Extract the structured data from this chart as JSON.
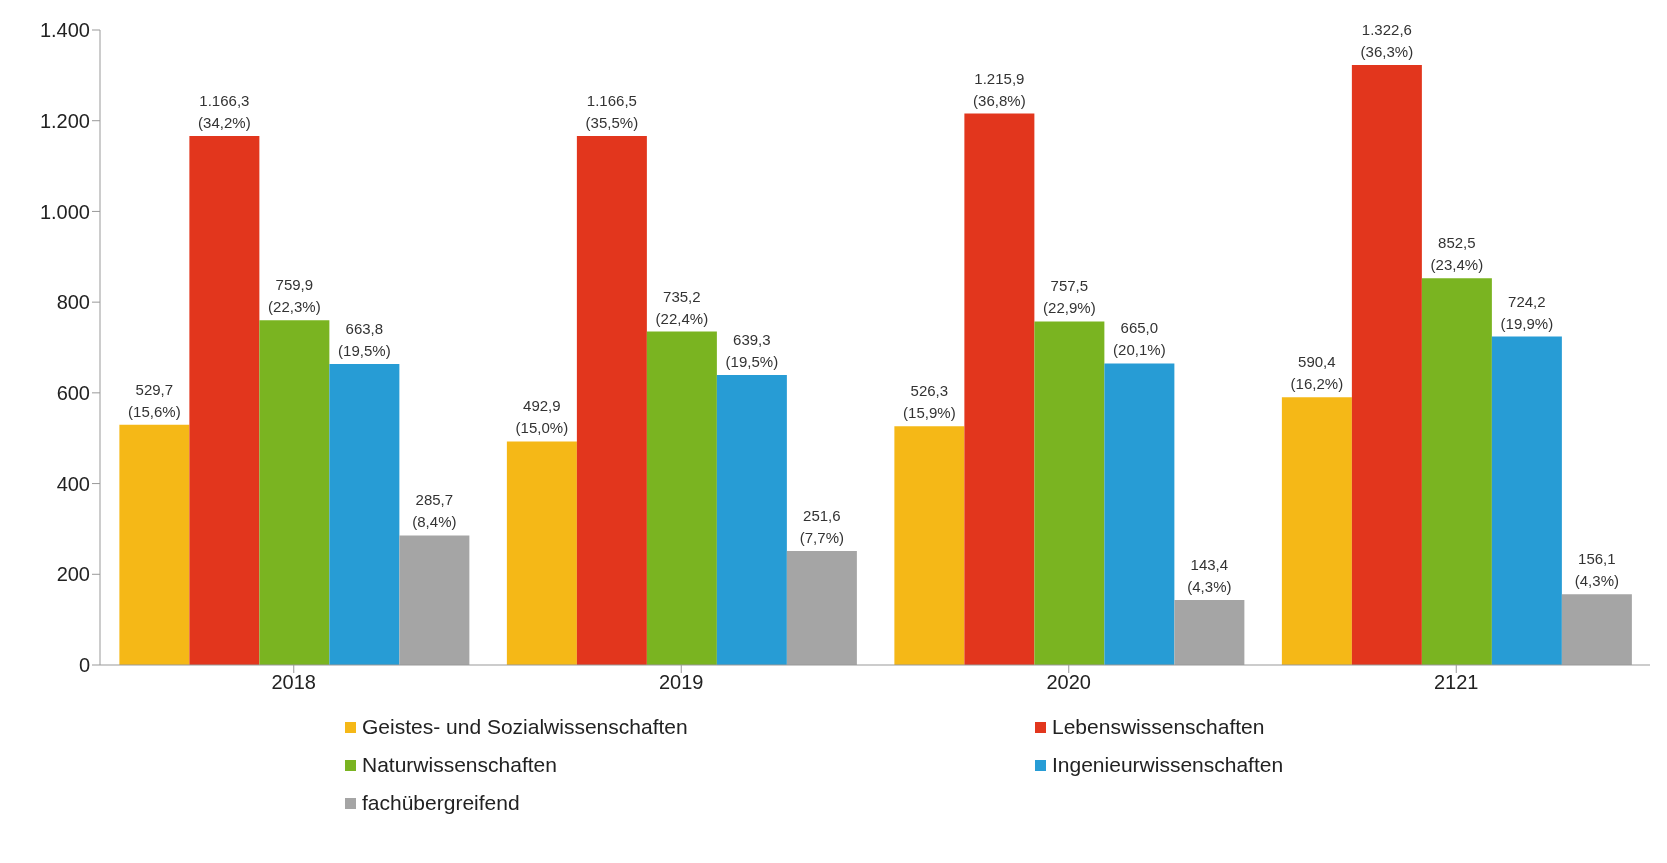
{
  "chart_data": {
    "type": "bar",
    "categories": [
      "2018",
      "2019",
      "2020",
      "2121"
    ],
    "series": [
      {
        "name": "Geistes- und Sozialwissenschaften",
        "color": "#f5b817",
        "values": [
          529.7,
          492.9,
          526.3,
          590.4
        ],
        "value_labels": [
          "529,7\n(15,6%)",
          "492,9\n(15,0%)",
          "526,3\n(15,9%)",
          "590,4\n(16,2%)"
        ]
      },
      {
        "name": "Lebenswissenschaften",
        "color": "#e2361d",
        "values": [
          1166.3,
          1166.5,
          1215.9,
          1322.6
        ],
        "value_labels": [
          "1.166,3\n(34,2%)",
          "1.166,5\n(35,5%)",
          "1.215,9\n(36,8%)",
          "1.322,6\n(36,3%)"
        ]
      },
      {
        "name": "Naturwissenschaften",
        "color": "#7ab421",
        "values": [
          759.9,
          735.2,
          757.5,
          852.5
        ],
        "value_labels": [
          "759,9\n(22,3%)",
          "735,2\n(22,4%)",
          "757,5\n(22,9%)",
          "852,5\n(23,4%)"
        ]
      },
      {
        "name": "Ingenieurwissenschaften",
        "color": "#279cd5",
        "values": [
          663.8,
          639.3,
          665.0,
          724.2
        ],
        "value_labels": [
          "663,8\n(19,5%)",
          "639,3\n(19,5%)",
          "665,0\n(20,1%)",
          "724,2\n(19,9%)"
        ]
      },
      {
        "name": "fachübergreifend",
        "color": "#a5a5a5",
        "values": [
          285.7,
          251.6,
          143.4,
          156.1
        ],
        "value_labels": [
          "285,7\n(8,4%)",
          "251,6\n(7,7%)",
          "143,4\n(4,3%)",
          "156,1\n(4,3%)"
        ]
      }
    ],
    "ylim": [
      0,
      1400
    ],
    "yticks": [
      0,
      200,
      400,
      600,
      800,
      {
        "value": 1000,
        "label": "1.000"
      },
      {
        "value": 1200,
        "label": "1.200"
      },
      {
        "value": 1400,
        "label": "1.400"
      }
    ],
    "grid": false,
    "legend": "bottom"
  }
}
